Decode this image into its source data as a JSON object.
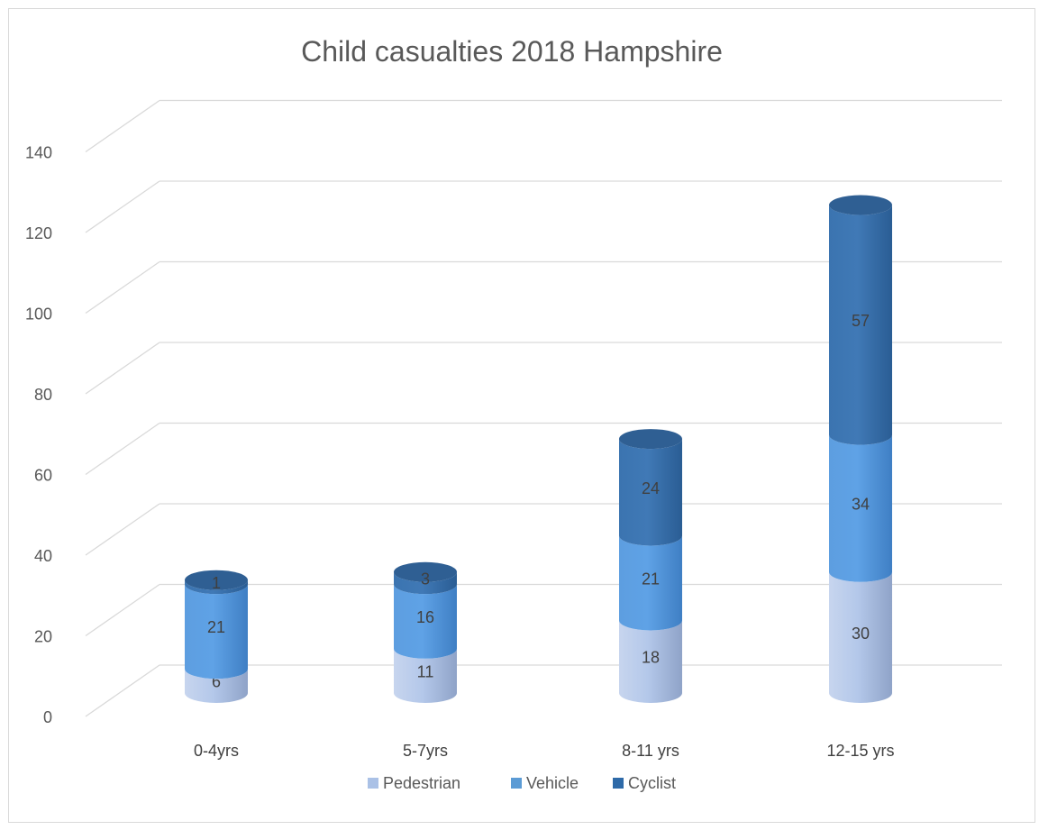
{
  "chart_data": {
    "type": "bar",
    "stacked": true,
    "style": "3d-cylinder",
    "title": "Child casualties 2018 Hampshire",
    "xlabel": "",
    "ylabel": "",
    "categories": [
      "0-4yrs",
      "5-7yrs",
      "8-11 yrs",
      "12-15 yrs"
    ],
    "series": [
      {
        "name": "Pedestrian",
        "values": [
          6,
          11,
          18,
          30
        ],
        "color": "#a9c0e4"
      },
      {
        "name": "Vehicle",
        "values": [
          21,
          16,
          21,
          34
        ],
        "color": "#5b9bd5"
      },
      {
        "name": "Cyclist",
        "values": [
          1,
          3,
          24,
          57
        ],
        "color": "#2e6aa8"
      }
    ],
    "ylim": [
      0,
      140
    ],
    "yticks": [
      0,
      20,
      40,
      60,
      80,
      100,
      120,
      140
    ],
    "grid": true,
    "legend_position": "bottom"
  }
}
